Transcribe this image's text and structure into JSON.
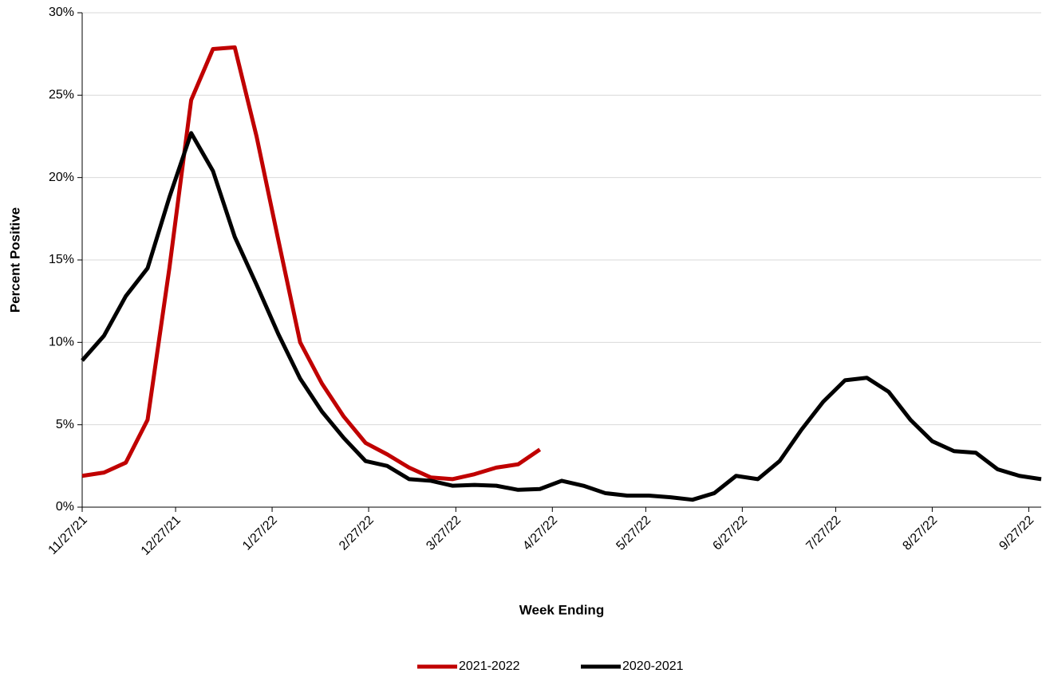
{
  "chart_data": {
    "type": "line",
    "xlabel": "Week Ending",
    "ylabel": "Percent Positive",
    "x": [
      "11/27/21",
      "12/4/21",
      "12/11/21",
      "12/18/21",
      "12/25/21",
      "1/1/22",
      "1/8/22",
      "1/15/22",
      "1/22/22",
      "1/29/22",
      "2/5/22",
      "2/12/22",
      "2/19/22",
      "2/26/22",
      "3/5/22",
      "3/12/22",
      "3/19/22",
      "3/26/22",
      "4/2/22",
      "4/9/22",
      "4/16/22",
      "4/23/22",
      "4/30/22",
      "5/7/22",
      "5/14/22",
      "5/21/22",
      "5/28/22",
      "6/4/22",
      "6/11/22",
      "6/18/22",
      "6/25/22",
      "7/2/22",
      "7/9/22",
      "7/16/22",
      "7/23/22",
      "7/30/22",
      "8/6/22",
      "8/13/22",
      "8/20/22",
      "8/27/22",
      "9/3/22",
      "9/10/22",
      "9/17/22",
      "9/24/22",
      "10/1/22"
    ],
    "series": [
      {
        "name": "2021-2022",
        "color": "#c00000",
        "values": [
          1.9,
          2.1,
          2.7,
          5.3,
          14.5,
          24.7,
          27.8,
          27.9,
          22.5,
          16.2,
          10.0,
          7.5,
          5.5,
          3.9,
          3.2,
          2.4,
          1.8,
          1.7,
          2.0,
          2.4,
          2.6,
          3.5,
          null,
          null,
          null,
          null,
          null,
          null,
          null,
          null,
          null,
          null,
          null,
          null,
          null,
          null,
          null,
          null,
          null,
          null,
          null,
          null,
          null,
          null,
          null
        ]
      },
      {
        "name": "2020-2021",
        "color": "#000000",
        "values": [
          8.9,
          10.4,
          12.8,
          14.5,
          18.8,
          22.7,
          20.4,
          16.4,
          13.5,
          10.5,
          7.8,
          5.8,
          4.2,
          2.8,
          2.5,
          1.7,
          1.6,
          1.3,
          1.35,
          1.3,
          1.05,
          1.1,
          1.6,
          1.3,
          0.85,
          0.7,
          0.7,
          0.6,
          0.45,
          0.85,
          1.9,
          1.7,
          2.8,
          4.7,
          6.4,
          7.7,
          7.85,
          7.0,
          5.3,
          4.0,
          3.4,
          3.3,
          2.3,
          1.9,
          1.7
        ]
      }
    ],
    "xlim": [
      "11/27/21",
      "10/1/22"
    ],
    "xticks": [
      "11/27/21",
      "12/27/21",
      "1/27/22",
      "2/27/22",
      "3/27/22",
      "4/27/22",
      "5/27/22",
      "6/27/22",
      "7/27/22",
      "8/27/22",
      "9/27/22"
    ],
    "ylim": [
      0,
      30
    ],
    "yticks": [
      {
        "value": 0,
        "label": "0%"
      },
      {
        "value": 5,
        "label": "5%"
      },
      {
        "value": 10,
        "label": "10%"
      },
      {
        "value": 15,
        "label": "15%"
      },
      {
        "value": 20,
        "label": "20%"
      },
      {
        "value": 25,
        "label": "25%"
      },
      {
        "value": 30,
        "label": "30%"
      }
    ],
    "grid": true,
    "legend": "bottom"
  }
}
